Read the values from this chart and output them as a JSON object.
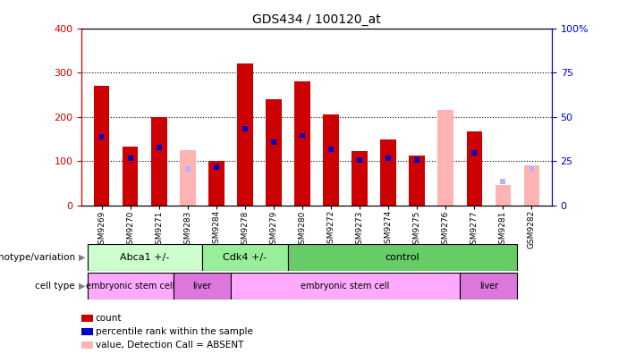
{
  "title": "GDS434 / 100120_at",
  "samples": [
    "GSM9269",
    "GSM9270",
    "GSM9271",
    "GSM9283",
    "GSM9284",
    "GSM9278",
    "GSM9279",
    "GSM9280",
    "GSM9272",
    "GSM9273",
    "GSM9274",
    "GSM9275",
    "GSM9276",
    "GSM9277",
    "GSM9281",
    "GSM9282"
  ],
  "count_values": [
    270,
    133,
    200,
    0,
    100,
    320,
    240,
    280,
    205,
    122,
    148,
    113,
    0,
    168,
    0,
    0
  ],
  "rank_values": [
    40,
    28,
    34,
    0,
    23,
    45,
    37,
    41,
    33,
    27,
    28,
    27,
    0,
    31,
    0,
    0
  ],
  "absent_count": [
    0,
    0,
    0,
    125,
    0,
    0,
    0,
    0,
    0,
    0,
    0,
    0,
    215,
    0,
    45,
    90
  ],
  "absent_rank": [
    0,
    0,
    0,
    22,
    0,
    0,
    0,
    0,
    0,
    0,
    0,
    0,
    0,
    0,
    15,
    22
  ],
  "ylim_left": [
    0,
    400
  ],
  "ylim_right": [
    0,
    100
  ],
  "left_ticks": [
    0,
    100,
    200,
    300,
    400
  ],
  "right_ticks": [
    0,
    25,
    50,
    75,
    100
  ],
  "right_tick_labels": [
    "0",
    "25",
    "50",
    "75",
    "100%"
  ],
  "left_color": "#cc0000",
  "rank_color": "#0000cc",
  "absent_count_color": "#ffb3b3",
  "absent_rank_color": "#b3b3ff",
  "bar_width": 0.55,
  "rank_bar_width": 0.18,
  "rank_bar_height": 12,
  "genotype_groups": [
    {
      "label": "Abca1 +/-",
      "start": 0,
      "end": 4,
      "color": "#ccffcc"
    },
    {
      "label": "Cdk4 +/-",
      "start": 4,
      "end": 7,
      "color": "#99ee99"
    },
    {
      "label": "control",
      "start": 7,
      "end": 15,
      "color": "#66cc66"
    }
  ],
  "cell_groups": [
    {
      "label": "embryonic stem cell",
      "start": 0,
      "end": 3,
      "color": "#ffaaff"
    },
    {
      "label": "liver",
      "start": 3,
      "end": 5,
      "color": "#dd77dd"
    },
    {
      "label": "embryonic stem cell",
      "start": 5,
      "end": 13,
      "color": "#ffaaff"
    },
    {
      "label": "liver",
      "start": 13,
      "end": 15,
      "color": "#dd77dd"
    }
  ],
  "legend_items": [
    {
      "color": "#cc0000",
      "label": "count"
    },
    {
      "color": "#0000cc",
      "label": "percentile rank within the sample"
    },
    {
      "color": "#ffb3b3",
      "label": "value, Detection Call = ABSENT"
    },
    {
      "color": "#b3b3ff",
      "label": "rank, Detection Call = ABSENT"
    }
  ]
}
